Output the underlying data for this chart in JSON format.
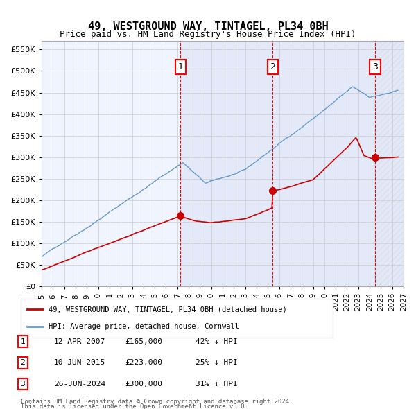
{
  "title": "49, WESTGROUND WAY, TINTAGEL, PL34 0BH",
  "subtitle": "Price paid vs. HM Land Registry's House Price Index (HPI)",
  "red_label": "49, WESTGROUND WAY, TINTAGEL, PL34 0BH (detached house)",
  "blue_label": "HPI: Average price, detached house, Cornwall",
  "footer1": "Contains HM Land Registry data © Crown copyright and database right 2024.",
  "footer2": "This data is licensed under the Open Government Licence v3.0.",
  "transactions": [
    {
      "num": 1,
      "date": "12-APR-2007",
      "price": 165000,
      "year": 2007.28,
      "hpi_pct": "42% ↓ HPI"
    },
    {
      "num": 2,
      "date": "10-JUN-2015",
      "price": 223000,
      "year": 2015.44,
      "hpi_pct": "25% ↓ HPI"
    },
    {
      "num": 3,
      "date": "26-JUN-2024",
      "price": 300000,
      "year": 2024.49,
      "hpi_pct": "31% ↓ HPI"
    }
  ],
  "xmin": 1995.0,
  "xmax": 2027.0,
  "ymin": 0,
  "ymax": 570000,
  "yticks": [
    0,
    50000,
    100000,
    150000,
    200000,
    250000,
    300000,
    350000,
    400000,
    450000,
    500000,
    550000
  ],
  "ytick_labels": [
    "£0",
    "£50K",
    "£100K",
    "£150K",
    "£200K",
    "£250K",
    "£300K",
    "£350K",
    "£400K",
    "£450K",
    "£500K",
    "£550K"
  ],
  "background_color": "#ffffff",
  "plot_bg_color": "#f0f4ff",
  "hatch_color": "#c0c8e0",
  "red_color": "#cc0000",
  "blue_color": "#6699cc",
  "shaded_start": 2007.28,
  "shaded_end": 2024.49
}
